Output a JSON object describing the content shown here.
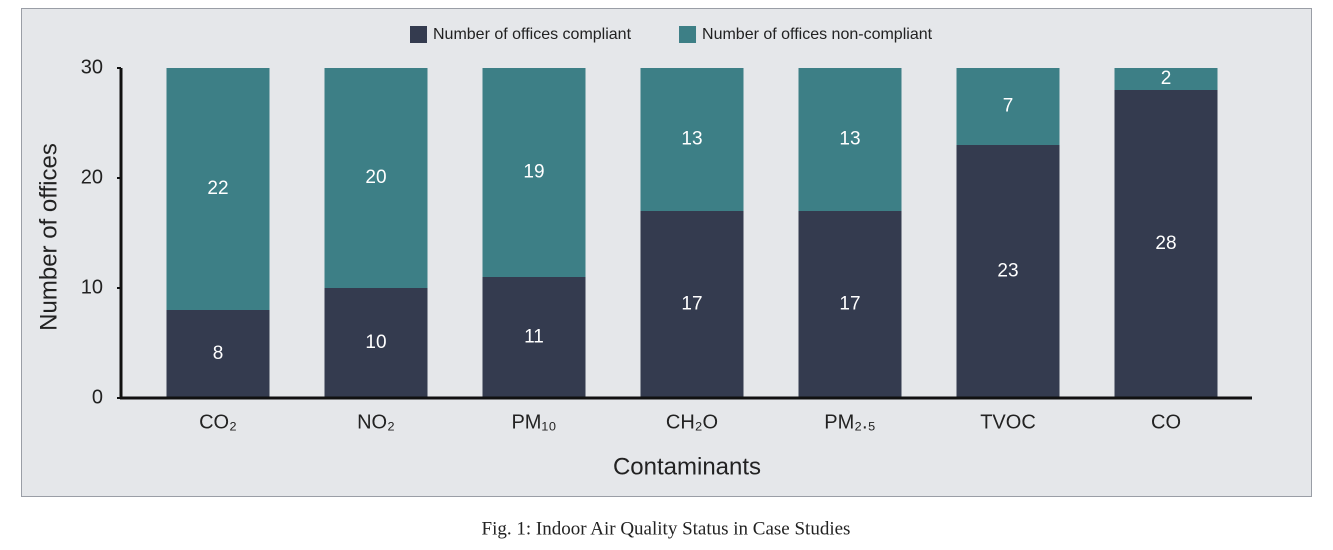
{
  "chart_data": {
    "type": "stacked_bar",
    "x_label": "Contaminants",
    "y_label": "Number of offices",
    "categories": [
      "CO₂",
      "NO₂",
      "PM₁₀",
      "CH₂O",
      "PM₂.₅",
      "TVOC",
      "CO"
    ],
    "series": [
      {
        "name": "Number of offices compliant",
        "color": "#343b4f",
        "values": [
          8,
          10,
          11,
          17,
          17,
          23,
          28
        ]
      },
      {
        "name": "Number of offices non-compliant",
        "color": "#3d7f86",
        "values": [
          22,
          20,
          19,
          13,
          13,
          7,
          2
        ]
      }
    ],
    "ylim": [
      0,
      30
    ],
    "yticks": [
      0,
      10,
      20,
      30
    ],
    "legend": "top"
  },
  "caption": "Fig. 1: Indoor Air Quality Status in Case Studies"
}
